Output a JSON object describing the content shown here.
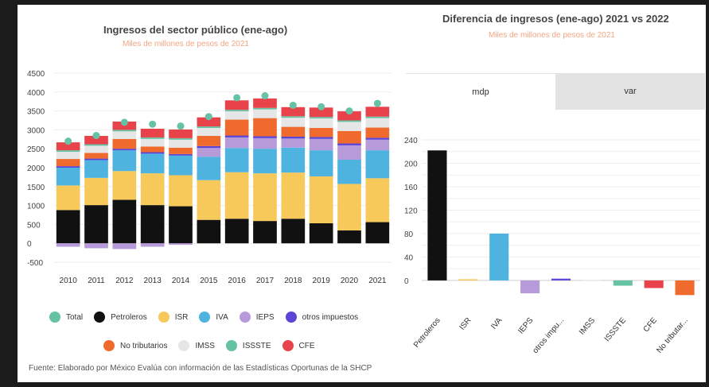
{
  "left": {
    "title": "Ingresos del sector público (ene-ago)",
    "subtitle": "Miles de millones de pesos de 2021"
  },
  "right": {
    "title": "Diferencia de ingresos (ene-ago) 2021 vs 2022",
    "subtitle": "Miles de millones de pesos de 2021",
    "tabs": [
      "mdp",
      "var"
    ]
  },
  "legend": {
    "row1": [
      {
        "label": "Total",
        "color": "#66c2a5"
      },
      {
        "label": "Petroleros",
        "color": "#111111"
      },
      {
        "label": "ISR",
        "color": "#f6c95a"
      },
      {
        "label": "IVA",
        "color": "#4fb3e0"
      },
      {
        "label": "IEPS",
        "color": "#b79ad9"
      },
      {
        "label": "otros impuestos",
        "color": "#5a45d6"
      }
    ],
    "row2": [
      {
        "label": "No tributarios",
        "color": "#ef6a2c"
      },
      {
        "label": "IMSS",
        "color": "#e6e6e6"
      },
      {
        "label": "ISSSTE",
        "color": "#66c2a5"
      },
      {
        "label": "CFE",
        "color": "#e8434b"
      }
    ]
  },
  "footer": "Fuente: Elaborado por México Evalúa con información de las Estadísticas Oportunas de la SHCP",
  "chart_data": [
    {
      "type": "bar",
      "stacked": true,
      "title": "Ingresos del sector público (ene-ago)",
      "subtitle": "Miles de millones de pesos de 2021",
      "categories": [
        "2010",
        "2011",
        "2012",
        "2013",
        "2014",
        "2015",
        "2016",
        "2017",
        "2018",
        "2019",
        "2020",
        "2021"
      ],
      "ylim": [
        -500,
        4500
      ],
      "yticks": [
        -500,
        0,
        500,
        1000,
        1500,
        2000,
        2500,
        3000,
        3500,
        4000,
        4500
      ],
      "series": [
        {
          "name": "Petroleros",
          "color": "#111111",
          "values": [
            880,
            1010,
            1150,
            1010,
            980,
            620,
            650,
            590,
            650,
            530,
            340,
            560
          ]
        },
        {
          "name": "ISR",
          "color": "#f6c95a",
          "values": [
            650,
            720,
            760,
            840,
            820,
            1050,
            1230,
            1260,
            1220,
            1240,
            1230,
            1160
          ]
        },
        {
          "name": "IVA",
          "color": "#4fb3e0",
          "values": [
            470,
            470,
            550,
            520,
            520,
            620,
            640,
            650,
            660,
            690,
            640,
            740
          ]
        },
        {
          "name": "IEPS",
          "color": "#b79ad9",
          "values": [
            -90,
            -130,
            -150,
            -90,
            -40,
            230,
            280,
            280,
            240,
            300,
            380,
            280
          ]
        },
        {
          "name": "otros impuestos",
          "color": "#5a45d6",
          "values": [
            40,
            40,
            40,
            40,
            40,
            50,
            50,
            50,
            50,
            50,
            50,
            50
          ]
        },
        {
          "name": "No tributarios",
          "color": "#ef6a2c",
          "values": [
            190,
            150,
            260,
            150,
            170,
            270,
            420,
            480,
            260,
            240,
            330,
            270
          ]
        },
        {
          "name": "IMSS",
          "color": "#e6e6e6",
          "values": [
            190,
            190,
            200,
            200,
            210,
            210,
            220,
            230,
            240,
            250,
            240,
            250
          ]
        },
        {
          "name": "ISSSTE",
          "color": "#66c2a5",
          "values": [
            40,
            40,
            40,
            40,
            40,
            40,
            40,
            40,
            40,
            40,
            40,
            40
          ]
        },
        {
          "name": "CFE",
          "color": "#e8434b",
          "values": [
            210,
            220,
            220,
            230,
            230,
            240,
            250,
            250,
            240,
            250,
            240,
            260
          ]
        }
      ],
      "totals": {
        "name": "Total",
        "color": "#66c2a5",
        "values": [
          2700,
          2850,
          3200,
          3150,
          3100,
          3350,
          3850,
          3900,
          3650,
          3610,
          3500,
          3700
        ]
      }
    },
    {
      "type": "bar",
      "title": "Diferencia de ingresos (ene-ago) 2021 vs 2022",
      "subtitle": "Miles de millones de pesos de 2021",
      "categories": [
        "Petroleros",
        "ISR",
        "IVA",
        "IEPS",
        "otros impu...",
        "IMSS",
        "ISSSTE",
        "CFE",
        "No tributar..."
      ],
      "values": [
        222,
        2,
        80,
        -22,
        3,
        1,
        -9,
        -13,
        -25
      ],
      "colors": [
        "#111111",
        "#f6c95a",
        "#4fb3e0",
        "#b79ad9",
        "#5a45d6",
        "#e6e6e6",
        "#66c2a5",
        "#e8434b",
        "#ef6a2c"
      ],
      "ylim": [
        -30,
        240
      ],
      "yticks": [
        0,
        20,
        40,
        60,
        80,
        100,
        120,
        140,
        160,
        180,
        200,
        220,
        240
      ],
      "yticks_labeled": [
        0,
        40,
        80,
        120,
        160,
        200,
        240
      ]
    }
  ]
}
